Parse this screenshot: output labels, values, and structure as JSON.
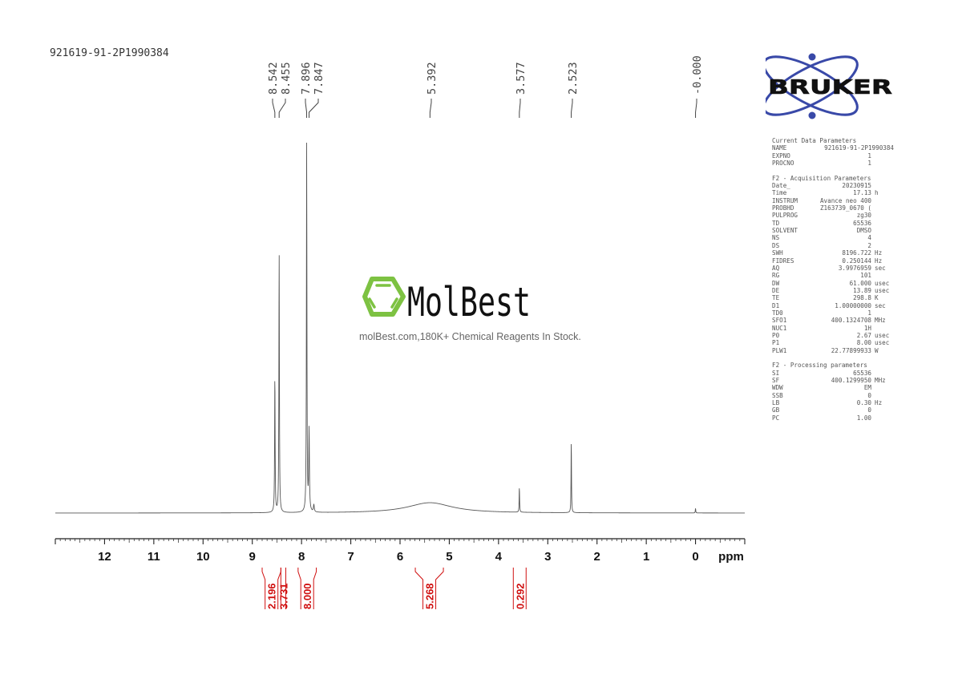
{
  "sample_name": "921619-91-2P1990384",
  "watermark": {
    "brand": "MolBest",
    "tagline": "molBest.com,180K+ Chemical Reagents In Stock.",
    "color": "#7dc242"
  },
  "bruker_logo": {
    "text": "BRUKER",
    "color": "#3949a8"
  },
  "parameters": {
    "sections": [
      {
        "title": "Current Data Parameters",
        "rows": [
          {
            "label": "NAME",
            "value": "921619-91-2P1990384",
            "unit": ""
          },
          {
            "label": "EXPNO",
            "value": "1",
            "unit": ""
          },
          {
            "label": "PROCNO",
            "value": "1",
            "unit": ""
          }
        ]
      },
      {
        "title": "F2 - Acquisition Parameters",
        "rows": [
          {
            "label": "Date_",
            "value": "20230915",
            "unit": ""
          },
          {
            "label": "Time",
            "value": "17.13",
            "unit": "h"
          },
          {
            "label": "INSTRUM",
            "value": "Avance neo 400",
            "unit": ""
          },
          {
            "label": "PROBHD",
            "value": "Z163739_0670 (",
            "unit": ""
          },
          {
            "label": "PULPROG",
            "value": "zg30",
            "unit": ""
          },
          {
            "label": "TD",
            "value": "65536",
            "unit": ""
          },
          {
            "label": "SOLVENT",
            "value": "DMSO",
            "unit": ""
          },
          {
            "label": "NS",
            "value": "4",
            "unit": ""
          },
          {
            "label": "DS",
            "value": "2",
            "unit": ""
          },
          {
            "label": "SWH",
            "value": "8196.722",
            "unit": "Hz"
          },
          {
            "label": "FIDRES",
            "value": "0.250144",
            "unit": "Hz"
          },
          {
            "label": "AQ",
            "value": "3.9976959",
            "unit": "sec"
          },
          {
            "label": "RG",
            "value": "101",
            "unit": ""
          },
          {
            "label": "DW",
            "value": "61.000",
            "unit": "usec"
          },
          {
            "label": "DE",
            "value": "13.89",
            "unit": "usec"
          },
          {
            "label": "TE",
            "value": "298.8",
            "unit": "K"
          },
          {
            "label": "D1",
            "value": "1.00000000",
            "unit": "sec"
          },
          {
            "label": "TD0",
            "value": "1",
            "unit": ""
          },
          {
            "label": "SFO1",
            "value": "400.1324708",
            "unit": "MHz"
          },
          {
            "label": "NUC1",
            "value": "1H",
            "unit": ""
          },
          {
            "label": "P0",
            "value": "2.67",
            "unit": "usec"
          },
          {
            "label": "P1",
            "value": "8.00",
            "unit": "usec"
          },
          {
            "label": "PLW1",
            "value": "22.77899933",
            "unit": "W"
          }
        ]
      },
      {
        "title": "F2 - Processing parameters",
        "rows": [
          {
            "label": "SI",
            "value": "65536",
            "unit": ""
          },
          {
            "label": "SF",
            "value": "400.1299950",
            "unit": "MHz"
          },
          {
            "label": "WDW",
            "value": "EM",
            "unit": ""
          },
          {
            "label": "SSB",
            "value": "0",
            "unit": ""
          },
          {
            "label": "LB",
            "value": "0.30",
            "unit": "Hz"
          },
          {
            "label": "GB",
            "value": "0",
            "unit": ""
          },
          {
            "label": "PC",
            "value": "1.00",
            "unit": ""
          }
        ]
      }
    ]
  },
  "chart_data": {
    "type": "line",
    "xlabel": "ppm",
    "xlim": [
      13,
      -1
    ],
    "x_ticks": [
      "12",
      "11",
      "10",
      "9",
      "8",
      "7",
      "6",
      "5",
      "4",
      "3",
      "2",
      "1",
      "0"
    ],
    "grid": false,
    "line_color": "#555555",
    "peak_labels": [
      "8.542",
      "8.455",
      "7.896",
      "7.847",
      "5.392",
      "3.577",
      "2.523",
      "-0.000"
    ],
    "peaks": [
      {
        "ppm": 8.542,
        "relative_intensity": 0.377,
        "width": 0.006
      },
      {
        "ppm": 8.455,
        "relative_intensity": 0.71,
        "width": 0.006
      },
      {
        "ppm": 7.896,
        "relative_intensity": 1.0,
        "width": 0.006
      },
      {
        "ppm": 7.847,
        "relative_intensity": 0.22,
        "width": 0.008
      },
      {
        "ppm": 7.75,
        "relative_intensity": 0.02,
        "width": 0.01
      },
      {
        "ppm": 5.392,
        "relative_intensity": 0.028,
        "width": 0.55
      },
      {
        "ppm": 3.577,
        "relative_intensity": 0.07,
        "width": 0.005
      },
      {
        "ppm": 2.523,
        "relative_intensity": 0.2,
        "width": 0.005
      },
      {
        "ppm": 0.0,
        "relative_intensity": 0.013,
        "width": 0.005
      }
    ],
    "integrals": [
      {
        "from": 8.8,
        "to": 8.42,
        "value": "2.196"
      },
      {
        "from": 8.42,
        "to": 8.32,
        "value": "3.731"
      },
      {
        "from": 8.07,
        "to": 7.7,
        "value": "8.000"
      },
      {
        "from": 5.69,
        "to": 5.12,
        "value": "5.268"
      },
      {
        "from": 3.7,
        "to": 3.44,
        "value": "0.292"
      }
    ],
    "integral_color": "#d01010"
  }
}
